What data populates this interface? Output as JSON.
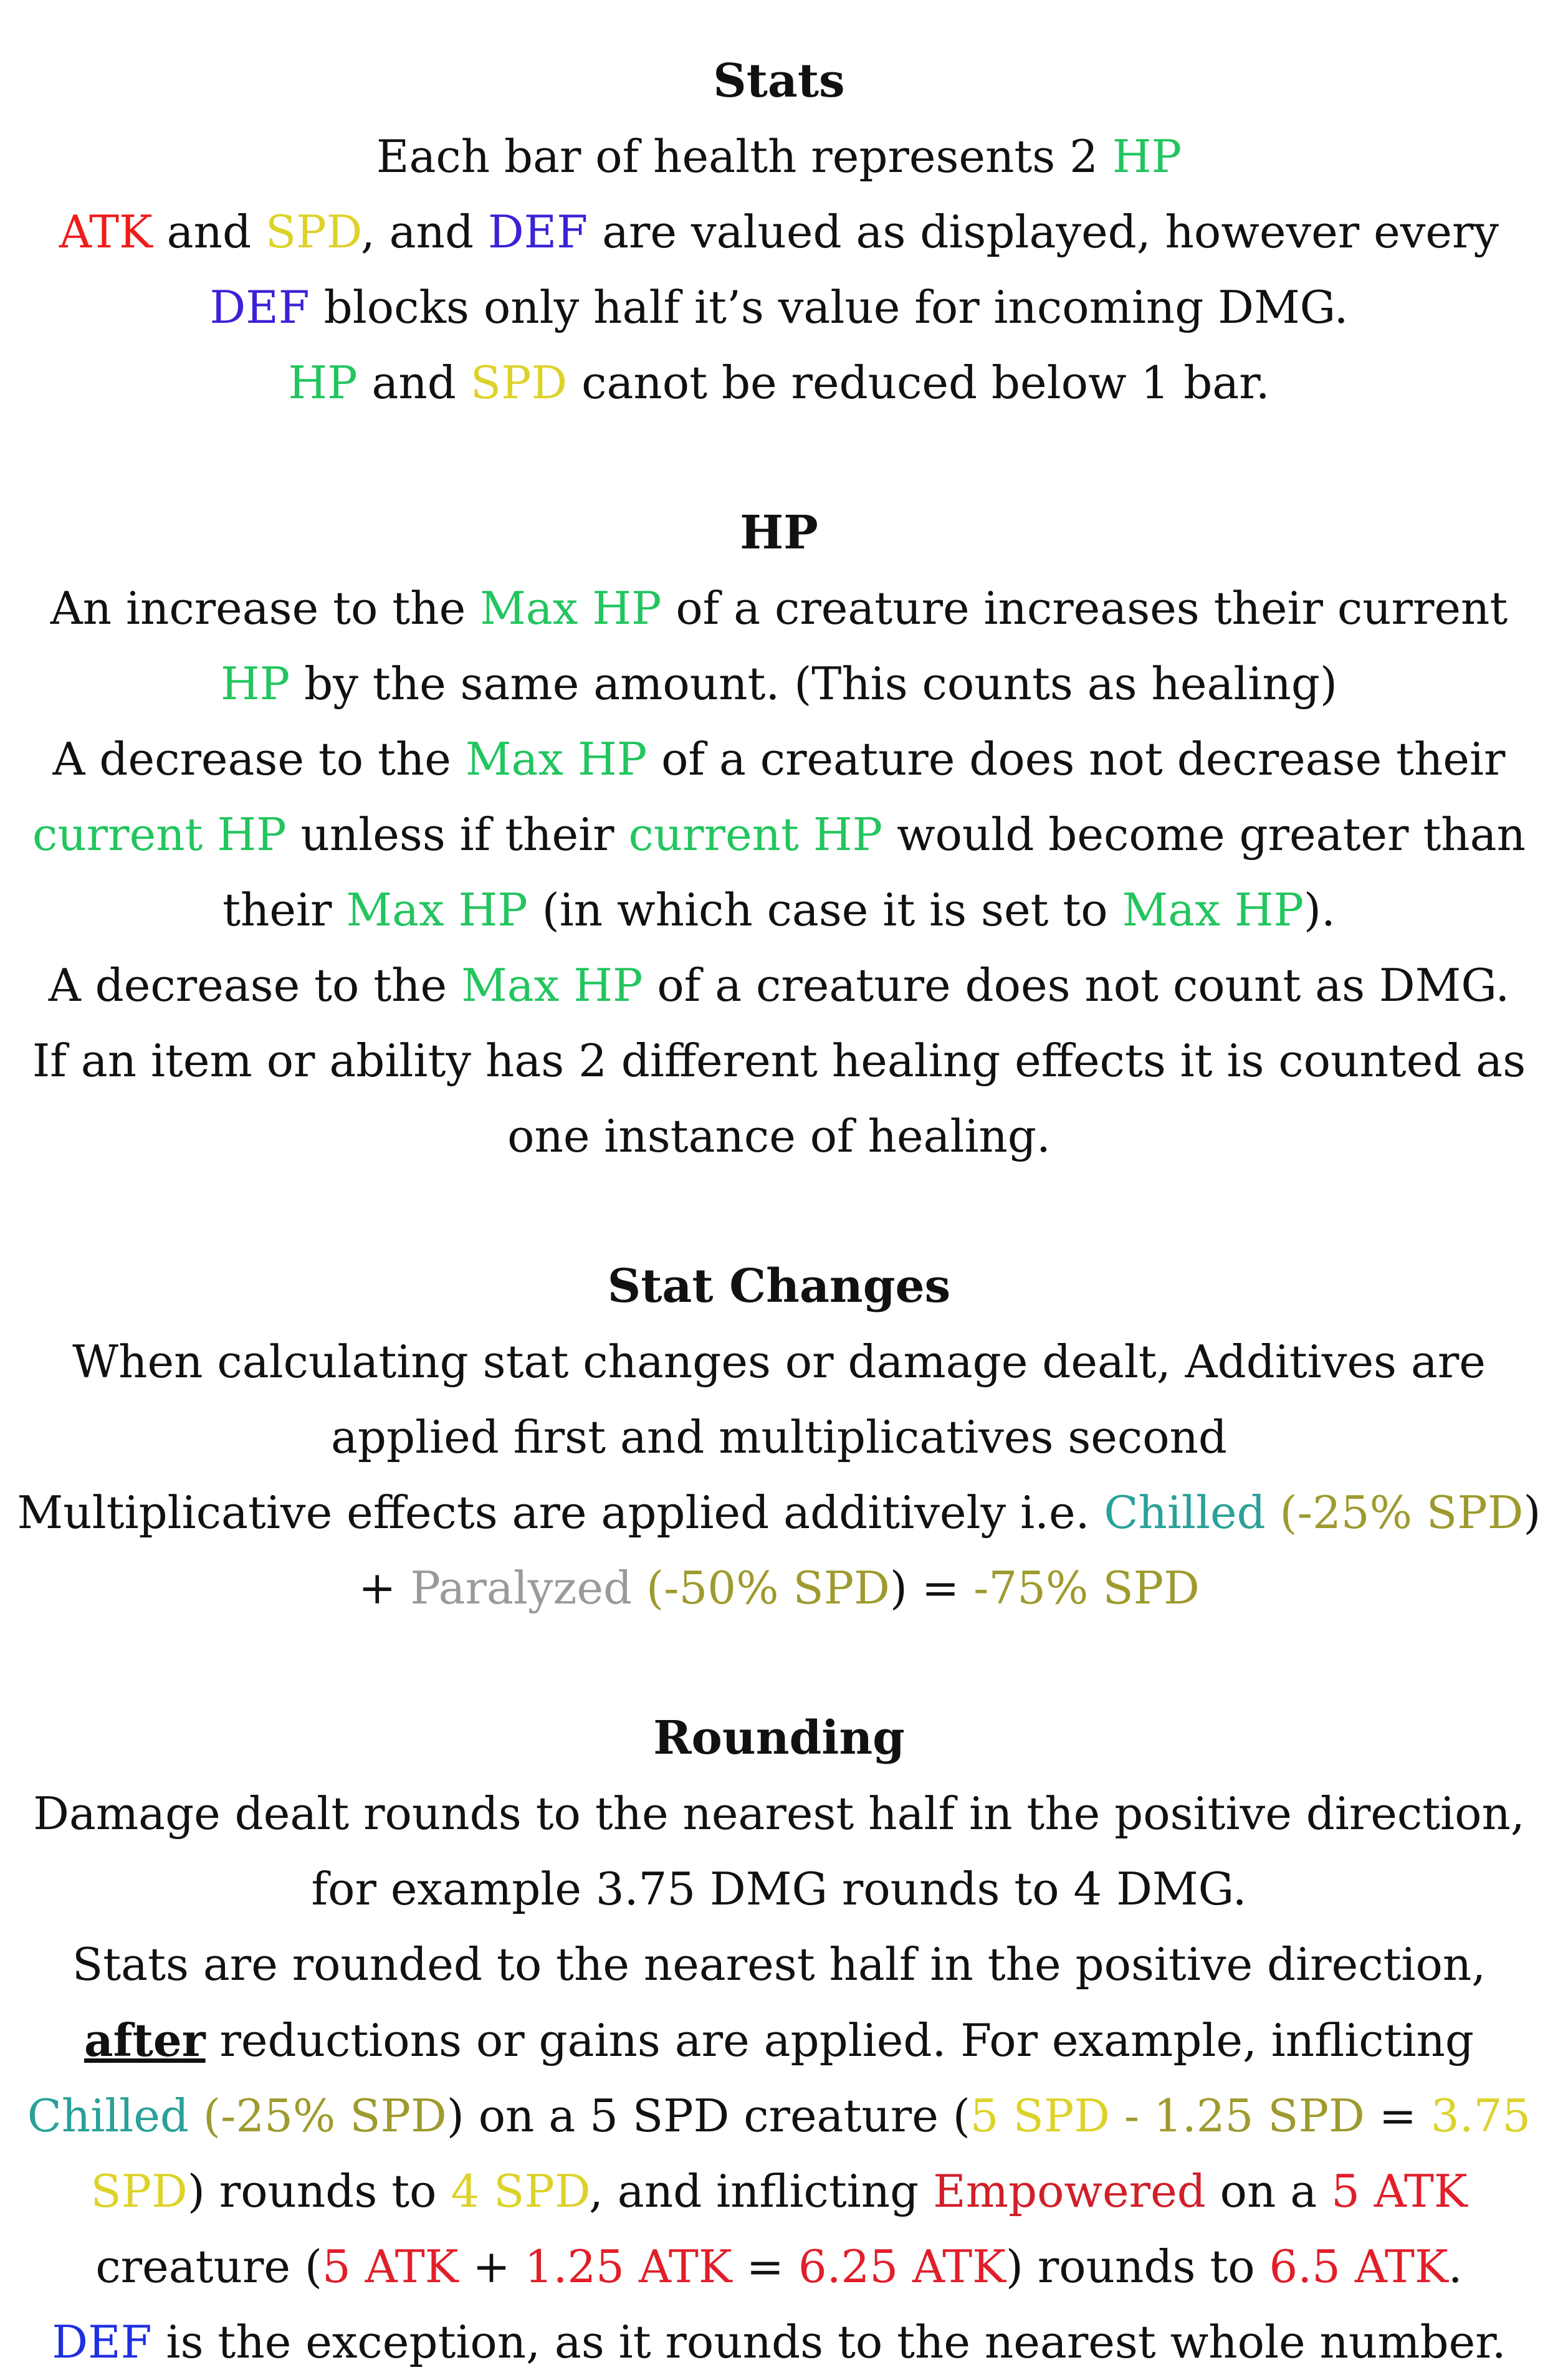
{
  "sections": [
    {
      "title": "Stats",
      "paragraphs": [
        [
          {
            "t": "Each bar of health represents 2 "
          },
          {
            "t": "HP",
            "c": "hp"
          }
        ],
        [
          {
            "t": "ATK",
            "c": "atk"
          },
          {
            "t": " and "
          },
          {
            "t": "SPD",
            "c": "spd"
          },
          {
            "t": ", and "
          },
          {
            "t": "DEF",
            "c": "def"
          },
          {
            "t": " are valued as displayed, however every "
          },
          {
            "t": "DEF",
            "c": "def"
          },
          {
            "t": " blocks only half it’s value for incoming DMG."
          }
        ],
        [
          {
            "t": "HP",
            "c": "hp"
          },
          {
            "t": " and "
          },
          {
            "t": "SPD",
            "c": "spd"
          },
          {
            "t": " canot be reduced below 1 bar."
          }
        ]
      ]
    },
    {
      "title": "HP",
      "paragraphs": [
        [
          {
            "t": "An increase to the "
          },
          {
            "t": "Max HP",
            "c": "hp"
          },
          {
            "t": " of a creature increases their current "
          },
          {
            "t": "HP",
            "c": "hp"
          },
          {
            "t": " by the same amount. (This counts as healing)"
          }
        ],
        [
          {
            "t": "A decrease to the "
          },
          {
            "t": "Max HP",
            "c": "hp"
          },
          {
            "t": " of a creature does not decrease their "
          },
          {
            "t": "current HP",
            "c": "hp"
          },
          {
            "t": " unless if their "
          },
          {
            "t": "current HP",
            "c": "hp"
          },
          {
            "t": " would become greater than their "
          },
          {
            "t": "Max HP",
            "c": "hp"
          },
          {
            "t": " (in which case it is set to "
          },
          {
            "t": "Max HP",
            "c": "hp"
          },
          {
            "t": ")."
          }
        ],
        [
          {
            "t": "A decrease to the "
          },
          {
            "t": "Max HP",
            "c": "hp"
          },
          {
            "t": " of a creature does not count as DMG."
          }
        ],
        [
          {
            "t": "If an item or ability has 2 different healing effects it is counted as one instance of healing."
          }
        ]
      ]
    },
    {
      "title": "Stat Changes",
      "paragraphs": [
        [
          {
            "t": "When calculating stat changes or damage dealt, Additives are applied first and multiplicatives second"
          }
        ],
        [
          {
            "t": "Multiplicative effects are applied additively i.e. "
          },
          {
            "t": "Chilled",
            "c": "chilled"
          },
          {
            "t": " ("
          },
          {
            "t": "-25% SPD",
            "c": "olive"
          },
          {
            "t": ") + "
          },
          {
            "t": "Paralyzed",
            "c": "para-gray"
          },
          {
            "t": " ("
          },
          {
            "t": "-50% SPD",
            "c": "olive"
          },
          {
            "t": ") = "
          },
          {
            "t": "-75% SPD",
            "c": "olive"
          }
        ]
      ]
    },
    {
      "title": "Rounding",
      "paragraphs": [
        [
          {
            "t": "Damage dealt rounds to the nearest half in the positive direction, for example 3.75 DMG rounds to 4 DMG."
          }
        ],
        [
          {
            "t": "Stats are rounded to the nearest half in the positive direction, "
          },
          {
            "t": "after",
            "c": "u"
          },
          {
            "t": " reductions or gains are applied. For example, inflicting "
          },
          {
            "t": "Chilled",
            "c": "chilled"
          },
          {
            "t": " ("
          },
          {
            "t": "-25% SPD",
            "c": "olive"
          },
          {
            "t": ") on a 5 SPD creature ("
          },
          {
            "t": "5 SPD",
            "c": "spd"
          },
          {
            "t": " - "
          },
          {
            "t": "1.25 SPD",
            "c": "olive"
          },
          {
            "t": " = "
          },
          {
            "t": "3.75 SPD",
            "c": "spd"
          },
          {
            "t": ") rounds to "
          },
          {
            "t": "4 SPD",
            "c": "spd"
          },
          {
            "t": ", and inflicting "
          },
          {
            "t": "Empowered",
            "c": "empowered"
          },
          {
            "t": " on a "
          },
          {
            "t": "5 ATK",
            "c": "red"
          },
          {
            "t": " creature ("
          },
          {
            "t": "5 ATK",
            "c": "red"
          },
          {
            "t": " + "
          },
          {
            "t": "1.25 ATK",
            "c": "red"
          },
          {
            "t": " = "
          },
          {
            "t": "6.25 ATK",
            "c": "red"
          },
          {
            "t": ") rounds to "
          },
          {
            "t": "6.5 ATK",
            "c": "red"
          },
          {
            "t": "."
          }
        ],
        [
          {
            "t": "DEF",
            "c": "def2"
          },
          {
            "t": " is the exception, as it rounds to the nearest whole number."
          }
        ]
      ]
    }
  ]
}
